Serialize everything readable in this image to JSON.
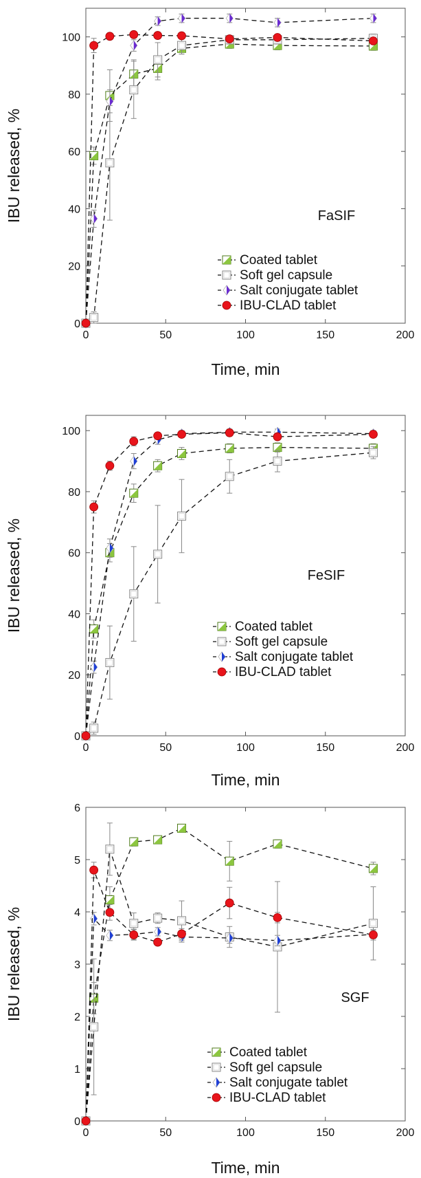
{
  "chart_data": [
    {
      "type": "line",
      "panel": "FaSIF",
      "xlabel": "Time, min",
      "ylabel": "IBU released, %",
      "xlim": [
        0,
        200
      ],
      "ylim": [
        0,
        110
      ],
      "xticks": [
        0,
        50,
        100,
        150,
        200
      ],
      "yticks": [
        0,
        20,
        40,
        60,
        80,
        100
      ],
      "annotation": "FaSIF",
      "grid": false,
      "legend_position": "lower-right",
      "series": [
        {
          "name": "Coated tablet",
          "marker": "half-square",
          "color": "#8cc63f",
          "x": [
            0,
            5,
            15,
            30,
            45,
            60,
            90,
            120,
            180
          ],
          "y": [
            0,
            58.5,
            79.5,
            87,
            89,
            96,
            97.5,
            97,
            96.8
          ],
          "err": [
            0,
            3,
            9,
            5,
            4,
            2,
            1.5,
            1.5,
            1.5
          ]
        },
        {
          "name": "Soft gel capsule",
          "marker": "open-square",
          "color": "#9a9a9a",
          "x": [
            0,
            5,
            15,
            30,
            45,
            60,
            90,
            120,
            180
          ],
          "y": [
            0,
            2,
            56,
            81.5,
            92,
            97,
            99,
            99,
            99.5
          ],
          "err": [
            0,
            2,
            20,
            10,
            6,
            3,
            1.5,
            1.5,
            1.5
          ]
        },
        {
          "name": "Salt conjugate tablet",
          "marker": "half-diamond",
          "color": "#6a2bd1",
          "x": [
            0,
            5,
            15,
            30,
            45,
            60,
            90,
            120,
            180
          ],
          "y": [
            0,
            36.5,
            77.5,
            97,
            105.5,
            106.5,
            106.5,
            105,
            106.5
          ],
          "err": [
            0,
            3,
            4,
            2,
            1.5,
            1.5,
            1.5,
            1.5,
            1.5
          ]
        },
        {
          "name": "IBU-CLAD tablet",
          "marker": "filled-circle",
          "color": "#e8141b",
          "x": [
            0,
            5,
            15,
            30,
            45,
            60,
            90,
            120,
            180
          ],
          "y": [
            0,
            97,
            100.2,
            100.8,
            100.5,
            100.4,
            99.3,
            99.8,
            98.6
          ],
          "err": [
            0,
            2.5,
            1,
            1,
            1,
            1,
            1,
            1,
            1
          ]
        }
      ]
    },
    {
      "type": "line",
      "panel": "FeSIF",
      "xlabel": "Time, min",
      "ylabel": "IBU released, %",
      "xlim": [
        0,
        200
      ],
      "ylim": [
        0,
        105
      ],
      "xticks": [
        0,
        50,
        100,
        150,
        200
      ],
      "yticks": [
        0,
        20,
        40,
        60,
        80,
        100
      ],
      "annotation": "FeSIF",
      "grid": false,
      "legend_position": "lower-right",
      "series": [
        {
          "name": "Coated tablet",
          "marker": "half-square",
          "color": "#8cc63f",
          "x": [
            0,
            5,
            15,
            30,
            45,
            60,
            90,
            120,
            180
          ],
          "y": [
            0,
            35,
            60,
            79.5,
            88.5,
            92.5,
            94.2,
            94.5,
            94.2
          ],
          "err": [
            0,
            3,
            3,
            3,
            2,
            2,
            1.5,
            1.5,
            1.5
          ]
        },
        {
          "name": "Soft gel capsule",
          "marker": "open-square",
          "color": "#9a9a9a",
          "x": [
            0,
            5,
            15,
            30,
            45,
            60,
            90,
            120,
            180
          ],
          "y": [
            0,
            2.5,
            24,
            46.5,
            59.5,
            72,
            85,
            90,
            92.8
          ],
          "err": [
            0,
            2,
            12,
            15.5,
            16,
            12,
            5.5,
            3.5,
            2
          ]
        },
        {
          "name": "Salt conjugate tablet",
          "marker": "half-diamond",
          "color": "#1f3fd6",
          "x": [
            0,
            5,
            15,
            30,
            45,
            60,
            90,
            120,
            180
          ],
          "y": [
            0,
            22.5,
            61.5,
            90,
            97,
            99,
            99.5,
            99.5,
            99
          ],
          "err": [
            0,
            2,
            3,
            2.5,
            1.5,
            1,
            1,
            1,
            1
          ]
        },
        {
          "name": "IBU-CLAD tablet",
          "marker": "filled-circle",
          "color": "#e8141b",
          "x": [
            0,
            5,
            15,
            30,
            45,
            60,
            90,
            120,
            180
          ],
          "y": [
            0,
            75,
            88.5,
            96.5,
            98.3,
            98.8,
            99.3,
            98,
            98.8
          ],
          "err": [
            0,
            2,
            1.5,
            1.5,
            1,
            1,
            1,
            1,
            1
          ]
        }
      ]
    },
    {
      "type": "line",
      "panel": "SGF",
      "xlabel": "Time, min",
      "ylabel": "IBU released, %",
      "xlim": [
        0,
        200
      ],
      "ylim": [
        0,
        6
      ],
      "xticks": [
        0,
        50,
        100,
        150,
        200
      ],
      "yticks": [
        0,
        1,
        2,
        3,
        4,
        5,
        6
      ],
      "annotation": "SGF",
      "grid": false,
      "legend_position": "lower-right",
      "series": [
        {
          "name": "Coated tablet",
          "marker": "half-square",
          "color": "#8cc63f",
          "x": [
            0,
            5,
            15,
            30,
            45,
            60,
            90,
            120,
            180
          ],
          "y": [
            0,
            2.35,
            4.23,
            5.34,
            5.38,
            5.6,
            4.97,
            5.3,
            4.83
          ],
          "err": [
            0,
            0.3,
            0.25,
            0.08,
            0.05,
            0.05,
            0.38,
            0.08,
            0.12
          ]
        },
        {
          "name": "Soft gel capsule",
          "marker": "open-square",
          "color": "#9a9a9a",
          "x": [
            0,
            5,
            15,
            30,
            45,
            60,
            90,
            120,
            180
          ],
          "y": [
            0,
            1.8,
            5.2,
            3.78,
            3.88,
            3.83,
            3.52,
            3.33,
            3.78
          ],
          "err": [
            0,
            1.3,
            0.5,
            0.2,
            0.1,
            0.38,
            0.2,
            1.25,
            0.7
          ]
        },
        {
          "name": "Salt conjugate tablet",
          "marker": "half-diamond",
          "color": "#1f3fd6",
          "x": [
            0,
            5,
            15,
            30,
            45,
            60,
            90,
            120,
            180
          ],
          "y": [
            0,
            3.87,
            3.55,
            3.57,
            3.62,
            3.52,
            3.5,
            3.45,
            3.57
          ],
          "err": [
            0,
            0.12,
            0.1,
            0.1,
            0.08,
            0.1,
            0.1,
            0.1,
            0.08
          ]
        },
        {
          "name": "IBU-CLAD tablet",
          "marker": "filled-circle",
          "color": "#e8141b",
          "x": [
            0,
            5,
            15,
            30,
            45,
            60,
            90,
            120,
            180
          ],
          "y": [
            0,
            4.8,
            3.99,
            3.56,
            3.42,
            3.58,
            4.17,
            3.89,
            3.56
          ],
          "err": [
            0,
            0.15,
            0.15,
            0.1,
            0.05,
            0.1,
            0.3,
            0.1,
            0.1
          ]
        }
      ]
    }
  ]
}
